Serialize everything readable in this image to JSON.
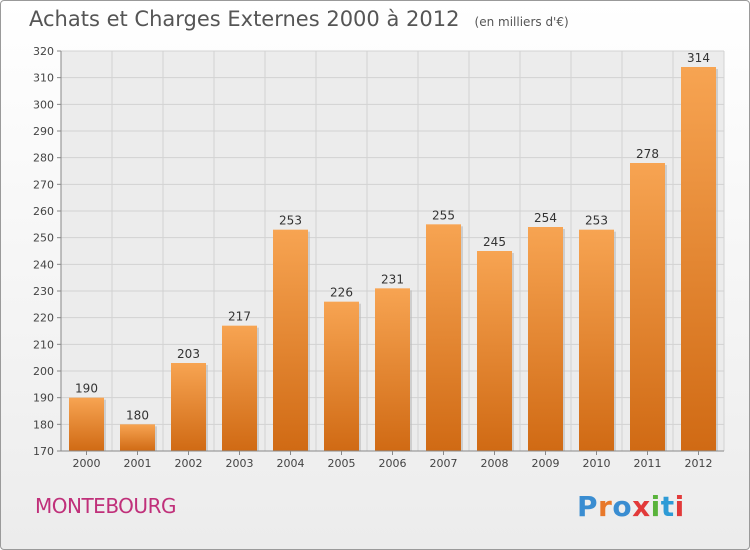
{
  "chart_data": {
    "type": "bar",
    "title": "Achats et Charges Externes 2000 à 2012",
    "subtitle": "(en milliers d'€)",
    "categories": [
      "2000",
      "2001",
      "2002",
      "2003",
      "2004",
      "2005",
      "2006",
      "2007",
      "2008",
      "2009",
      "2010",
      "2011",
      "2012"
    ],
    "values": [
      190,
      180,
      203,
      217,
      253,
      226,
      231,
      255,
      245,
      254,
      253,
      278,
      314
    ],
    "ylim": [
      170,
      320
    ],
    "yticks": [
      170,
      180,
      190,
      200,
      210,
      220,
      230,
      240,
      250,
      260,
      270,
      280,
      290,
      300,
      310,
      320
    ],
    "grid": true,
    "bar_color_top": "#f7a452",
    "bar_color_bottom": "#d06a14"
  },
  "footer": {
    "commune": "MONTEBOURG",
    "logo_text": "Proxiti",
    "logo_colors": [
      "#3a8dd1",
      "#e8782a",
      "#3a8dd1",
      "#e23a3a",
      "#59b33b",
      "#2e9bd6",
      "#e23a3a"
    ]
  }
}
